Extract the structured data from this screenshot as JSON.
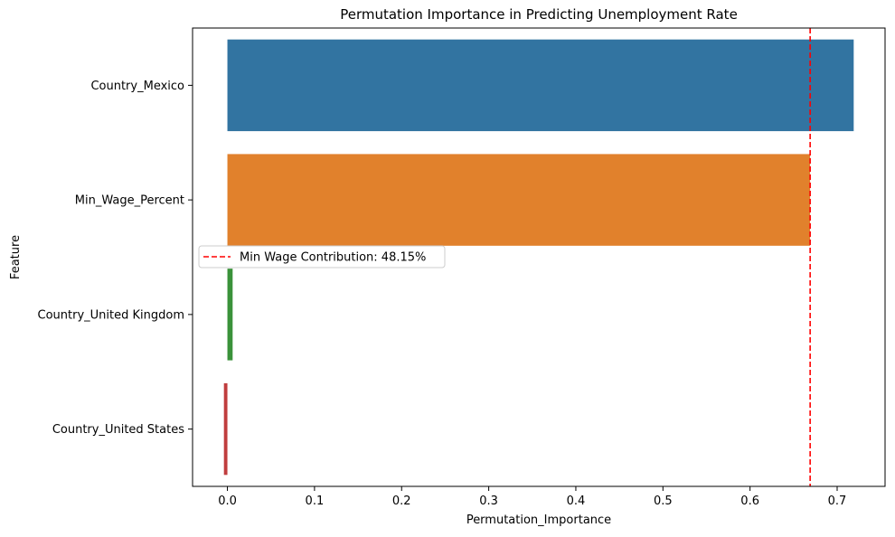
{
  "chart_data": {
    "type": "bar",
    "orientation": "horizontal",
    "title": "Permutation Importance in Predicting Unemployment Rate",
    "xlabel": "Permutation_Importance",
    "ylabel": "Feature",
    "xlim": [
      -0.04,
      0.755
    ],
    "xticks": [
      0.0,
      0.1,
      0.2,
      0.3,
      0.4,
      0.5,
      0.6,
      0.7
    ],
    "xtick_labels": [
      "0.0",
      "0.1",
      "0.2",
      "0.3",
      "0.4",
      "0.5",
      "0.6",
      "0.7"
    ],
    "categories": [
      "Country_Mexico",
      "Min_Wage_Percent",
      "Country_United Kingdom",
      "Country_United States"
    ],
    "values": [
      0.719,
      0.669,
      0.006,
      -0.004
    ],
    "colors": [
      "#3274a1",
      "#e1812c",
      "#3a923a",
      "#c03d3e"
    ],
    "grid": false,
    "reference_line": {
      "x": 0.669,
      "color": "#ff0000",
      "style": "dashed",
      "label": "Min Wage Contribution: 48.15%"
    },
    "legend_position": "center-left"
  }
}
